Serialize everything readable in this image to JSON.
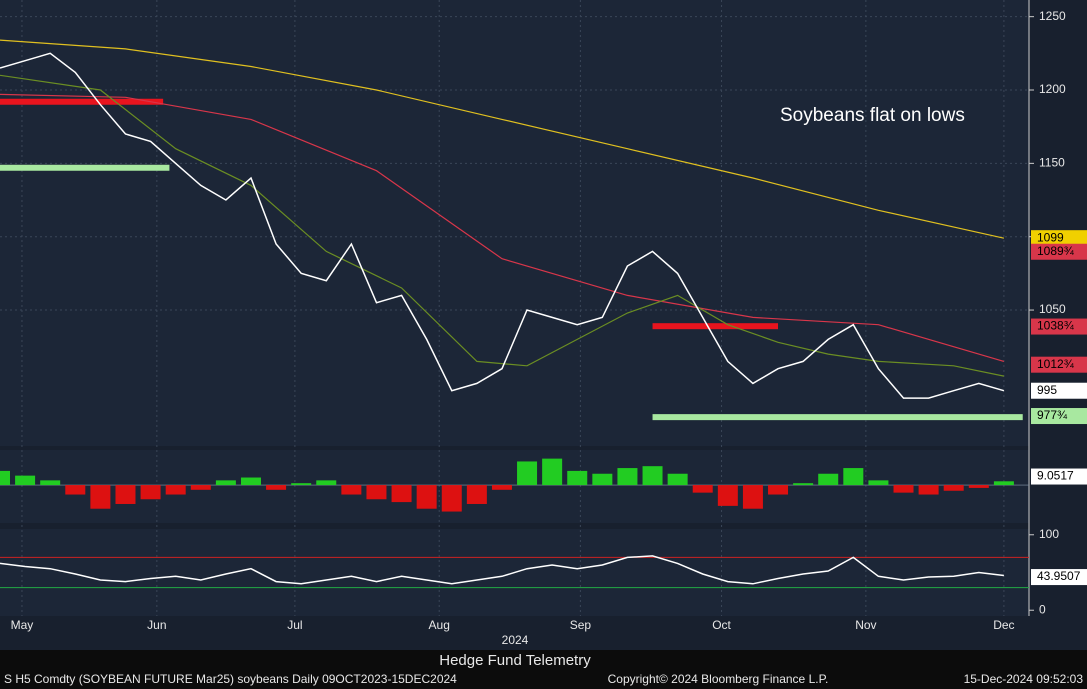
{
  "chart_data": [
    {
      "type": "line",
      "annotation": "Soybeans flat on lows",
      "xlim": [
        0,
        164
      ],
      "ylim": [
        958,
        1260
      ],
      "yticks": [
        1050,
        1100,
        1150,
        1200,
        1250
      ],
      "xticks": [
        {
          "value": 3.5,
          "label": "May"
        },
        {
          "value": 25,
          "label": "Jun"
        },
        {
          "value": 47,
          "label": "Jul"
        },
        {
          "value": 70,
          "label": "Aug"
        },
        {
          "value": 92.5,
          "label": "Sep"
        },
        {
          "value": 115,
          "label": "Oct"
        },
        {
          "value": 138,
          "label": "Nov"
        },
        {
          "value": 160,
          "label": "Dec"
        }
      ],
      "xlabel": "2024",
      "grid": true,
      "series": [
        {
          "color": "#e0c020",
          "x": [
            0,
            20,
            40,
            60,
            80,
            100,
            120,
            140,
            160
          ],
          "values": [
            1234,
            1228,
            1216,
            1200,
            1180,
            1160,
            1140,
            1118,
            1099
          ]
        },
        {
          "color": "#d8364a",
          "x": [
            0,
            20,
            40,
            60,
            80,
            100,
            120,
            140,
            160
          ],
          "values": [
            1197,
            1195,
            1180,
            1145,
            1085,
            1060,
            1045,
            1040,
            1015
          ]
        },
        {
          "color": "#6b8e23",
          "x": [
            0,
            16,
            28,
            40,
            52,
            64,
            76,
            84,
            92,
            100,
            108,
            116,
            124,
            132,
            140,
            152,
            160
          ],
          "values": [
            1210,
            1200,
            1160,
            1135,
            1090,
            1065,
            1015,
            1012,
            1030,
            1048,
            1060,
            1040,
            1028,
            1020,
            1015,
            1012,
            1005
          ]
        },
        {
          "color": "#ffffff",
          "x": [
            0,
            4,
            8,
            12,
            16,
            20,
            24,
            28,
            32,
            36,
            40,
            44,
            48,
            52,
            56,
            60,
            64,
            68,
            72,
            76,
            80,
            84,
            88,
            92,
            96,
            100,
            104,
            108,
            112,
            116,
            120,
            124,
            128,
            132,
            136,
            140,
            144,
            148,
            152,
            156,
            160
          ],
          "values": [
            1215,
            1220,
            1225,
            1212,
            1190,
            1170,
            1165,
            1150,
            1135,
            1125,
            1140,
            1095,
            1075,
            1070,
            1095,
            1055,
            1060,
            1030,
            995,
            1000,
            1010,
            1050,
            1045,
            1040,
            1045,
            1080,
            1090,
            1075,
            1045,
            1015,
            1000,
            1010,
            1015,
            1030,
            1040,
            1010,
            990,
            990,
            995,
            1000,
            995
          ]
        }
      ],
      "levels": [
        {
          "value": 1192,
          "x": [
            0,
            26
          ],
          "color": "#e8141e"
        },
        {
          "value": 1147,
          "x": [
            0,
            27
          ],
          "color": "#a8e8a0"
        },
        {
          "value": 1039,
          "x": [
            104,
            124
          ],
          "color": "#e8141e"
        },
        {
          "value": 977,
          "x": [
            104,
            163
          ],
          "color": "#a8e8a0"
        }
      ],
      "last_values": [
        {
          "value": 1099,
          "label": "1099",
          "color": "#f0d000"
        },
        {
          "value": 1089.75,
          "label": "1089¾",
          "color": "#d8364a"
        },
        {
          "value": 1038.75,
          "label": "1038¾",
          "color": "#d8364a"
        },
        {
          "value": 1012.75,
          "label": "1012¾",
          "color": "#d8364a"
        },
        {
          "value": 995,
          "label": "995",
          "color": "#ffffff"
        },
        {
          "value": 977.75,
          "label": "977¾",
          "color": "#a8e8a0"
        }
      ]
    },
    {
      "type": "bar",
      "xlim": [
        0,
        164
      ],
      "ylim": [
        -38,
        35
      ],
      "color_up": "#22cc22",
      "color_down": "#dd1111",
      "x": [
        0,
        4,
        8,
        12,
        16,
        20,
        24,
        28,
        32,
        36,
        40,
        44,
        48,
        52,
        56,
        60,
        64,
        68,
        72,
        76,
        80,
        84,
        88,
        92,
        96,
        100,
        104,
        108,
        112,
        116,
        120,
        124,
        128,
        132,
        136,
        140,
        144,
        148,
        152,
        156,
        160
      ],
      "values": [
        15,
        10,
        5,
        -10,
        -25,
        -20,
        -15,
        -10,
        -5,
        5,
        8,
        -5,
        2,
        5,
        -10,
        -15,
        -18,
        -25,
        -28,
        -20,
        -5,
        25,
        28,
        15,
        12,
        18,
        20,
        12,
        -8,
        -22,
        -25,
        -10,
        2,
        12,
        18,
        5,
        -8,
        -10,
        -6,
        -3,
        4
      ],
      "last_values": [
        {
          "value": 9.0517,
          "label": "9.0517",
          "color": "#ffffff"
        }
      ]
    },
    {
      "type": "line",
      "xlim": [
        0,
        164
      ],
      "ylim": [
        -5,
        105
      ],
      "yticks": [
        0,
        100
      ],
      "bands": [
        {
          "value": 70,
          "color": "#cc2222"
        },
        {
          "value": 30,
          "color": "#22aa44"
        }
      ],
      "series": [
        {
          "color": "#ffffff",
          "x": [
            0,
            4,
            8,
            12,
            16,
            20,
            24,
            28,
            32,
            36,
            40,
            44,
            48,
            52,
            56,
            60,
            64,
            68,
            72,
            76,
            80,
            84,
            88,
            92,
            96,
            100,
            104,
            108,
            112,
            116,
            120,
            124,
            128,
            132,
            136,
            140,
            144,
            148,
            152,
            156,
            160
          ],
          "values": [
            62,
            58,
            55,
            48,
            40,
            38,
            42,
            45,
            40,
            48,
            55,
            38,
            35,
            40,
            45,
            38,
            45,
            40,
            35,
            40,
            45,
            55,
            60,
            55,
            60,
            70,
            72,
            62,
            48,
            38,
            35,
            42,
            48,
            52,
            70,
            45,
            40,
            44,
            45,
            50,
            46
          ]
        }
      ],
      "last_values": [
        {
          "value": 43.9507,
          "label": "43.9507",
          "color": "#ffffff"
        }
      ]
    }
  ],
  "footer": {
    "left": "S H5 Comdty (SOYBEAN FUTURE    Mar25) soybeans  Daily 09OCT2023-15DEC2024",
    "center": "Hedge Fund Telemetry",
    "copyright": "Copyright© 2024 Bloomberg Finance L.P.",
    "timestamp": "15-Dec-2024 09:52:03"
  }
}
